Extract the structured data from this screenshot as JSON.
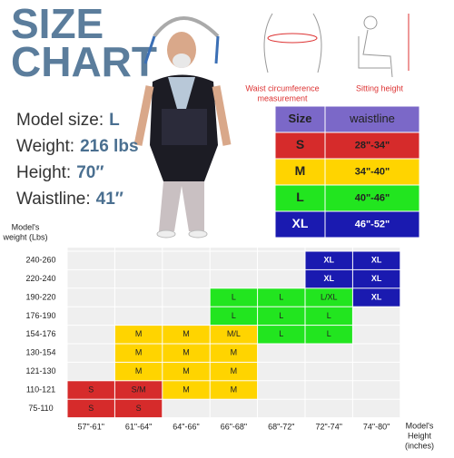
{
  "header": {
    "title": [
      "SIZE",
      "CHART"
    ]
  },
  "model": [
    {
      "label": "Model size:",
      "value": "L"
    },
    {
      "label": "Weight:",
      "value": "216 lbs"
    },
    {
      "label": "Height:",
      "value": "70″"
    },
    {
      "label": "Waistline:",
      "value": "41″"
    }
  ],
  "icons": {
    "waist": [
      "Waist circumference",
      "measurement"
    ],
    "sitting": "Sitting height"
  },
  "size_table": {
    "header": [
      "Size",
      "waistline"
    ],
    "header_color": "#7b68c8",
    "rows": [
      {
        "size": "S",
        "waist": "28\"-34\"",
        "color": "#d62b2b",
        "text_color": "#222"
      },
      {
        "size": "M",
        "waist": "34\"-40\"",
        "color": "#ffd400",
        "text_color": "#222"
      },
      {
        "size": "L",
        "waist": "40\"-46\"",
        "color": "#22e51f",
        "text_color": "#222"
      },
      {
        "size": "XL",
        "waist": "46\"-52\"",
        "color": "#1a1ab0",
        "text_color": "#fff"
      }
    ]
  },
  "grid": {
    "y_title": [
      "Model's",
      "weight (Lbs)"
    ],
    "x_title": [
      "Model's",
      "Height",
      "(inches)"
    ],
    "columns": [
      "57\"-61\"",
      "61\"-64\"",
      "64\"-66\"",
      "66\"-68\"",
      "68\"-72\"",
      "72\"-74\"",
      "74\"-80\""
    ],
    "rows": [
      {
        "label": "240-260",
        "cells": [
          null,
          null,
          null,
          null,
          null,
          {
            "label": "XL",
            "color": "#1a1ab0"
          },
          {
            "label": "XL",
            "color": "#1a1ab0"
          }
        ]
      },
      {
        "label": "220-240",
        "cells": [
          null,
          null,
          null,
          null,
          null,
          {
            "label": "XL",
            "color": "#1a1ab0"
          },
          {
            "label": "XL",
            "color": "#1a1ab0"
          }
        ]
      },
      {
        "label": "190-220",
        "cells": [
          null,
          null,
          null,
          {
            "label": "L",
            "color": "#22e51f"
          },
          {
            "label": "L",
            "color": "#22e51f"
          },
          {
            "label": "L/XL",
            "color": "#22e51f"
          },
          {
            "label": "XL",
            "color": "#1a1ab0"
          }
        ]
      },
      {
        "label": "176-190",
        "cells": [
          null,
          null,
          null,
          {
            "label": "L",
            "color": "#22e51f"
          },
          {
            "label": "L",
            "color": "#22e51f"
          },
          {
            "label": "L",
            "color": "#22e51f"
          },
          null
        ]
      },
      {
        "label": "154-176",
        "cells": [
          null,
          {
            "label": "M",
            "color": "#ffd400"
          },
          {
            "label": "M",
            "color": "#ffd400"
          },
          {
            "label": "M/L",
            "color": "#ffd400"
          },
          {
            "label": "L",
            "color": "#22e51f"
          },
          {
            "label": "L",
            "color": "#22e51f"
          },
          null
        ]
      },
      {
        "label": "130-154",
        "cells": [
          null,
          {
            "label": "M",
            "color": "#ffd400"
          },
          {
            "label": "M",
            "color": "#ffd400"
          },
          {
            "label": "M",
            "color": "#ffd400"
          },
          null,
          null,
          null
        ]
      },
      {
        "label": "121-130",
        "cells": [
          null,
          {
            "label": "M",
            "color": "#ffd400"
          },
          {
            "label": "M",
            "color": "#ffd400"
          },
          {
            "label": "M",
            "color": "#ffd400"
          },
          null,
          null,
          null
        ]
      },
      {
        "label": "110-121",
        "cells": [
          {
            "label": "S",
            "color": "#d62b2b"
          },
          {
            "label": "S/M",
            "color": "#d62b2b"
          },
          {
            "label": "M",
            "color": "#ffd400"
          },
          {
            "label": "M",
            "color": "#ffd400"
          },
          null,
          null,
          null
        ]
      },
      {
        "label": "75-110",
        "cells": [
          {
            "label": "S",
            "color": "#d62b2b"
          },
          {
            "label": "S",
            "color": "#d62b2b"
          },
          null,
          null,
          null,
          null,
          null
        ]
      }
    ]
  }
}
